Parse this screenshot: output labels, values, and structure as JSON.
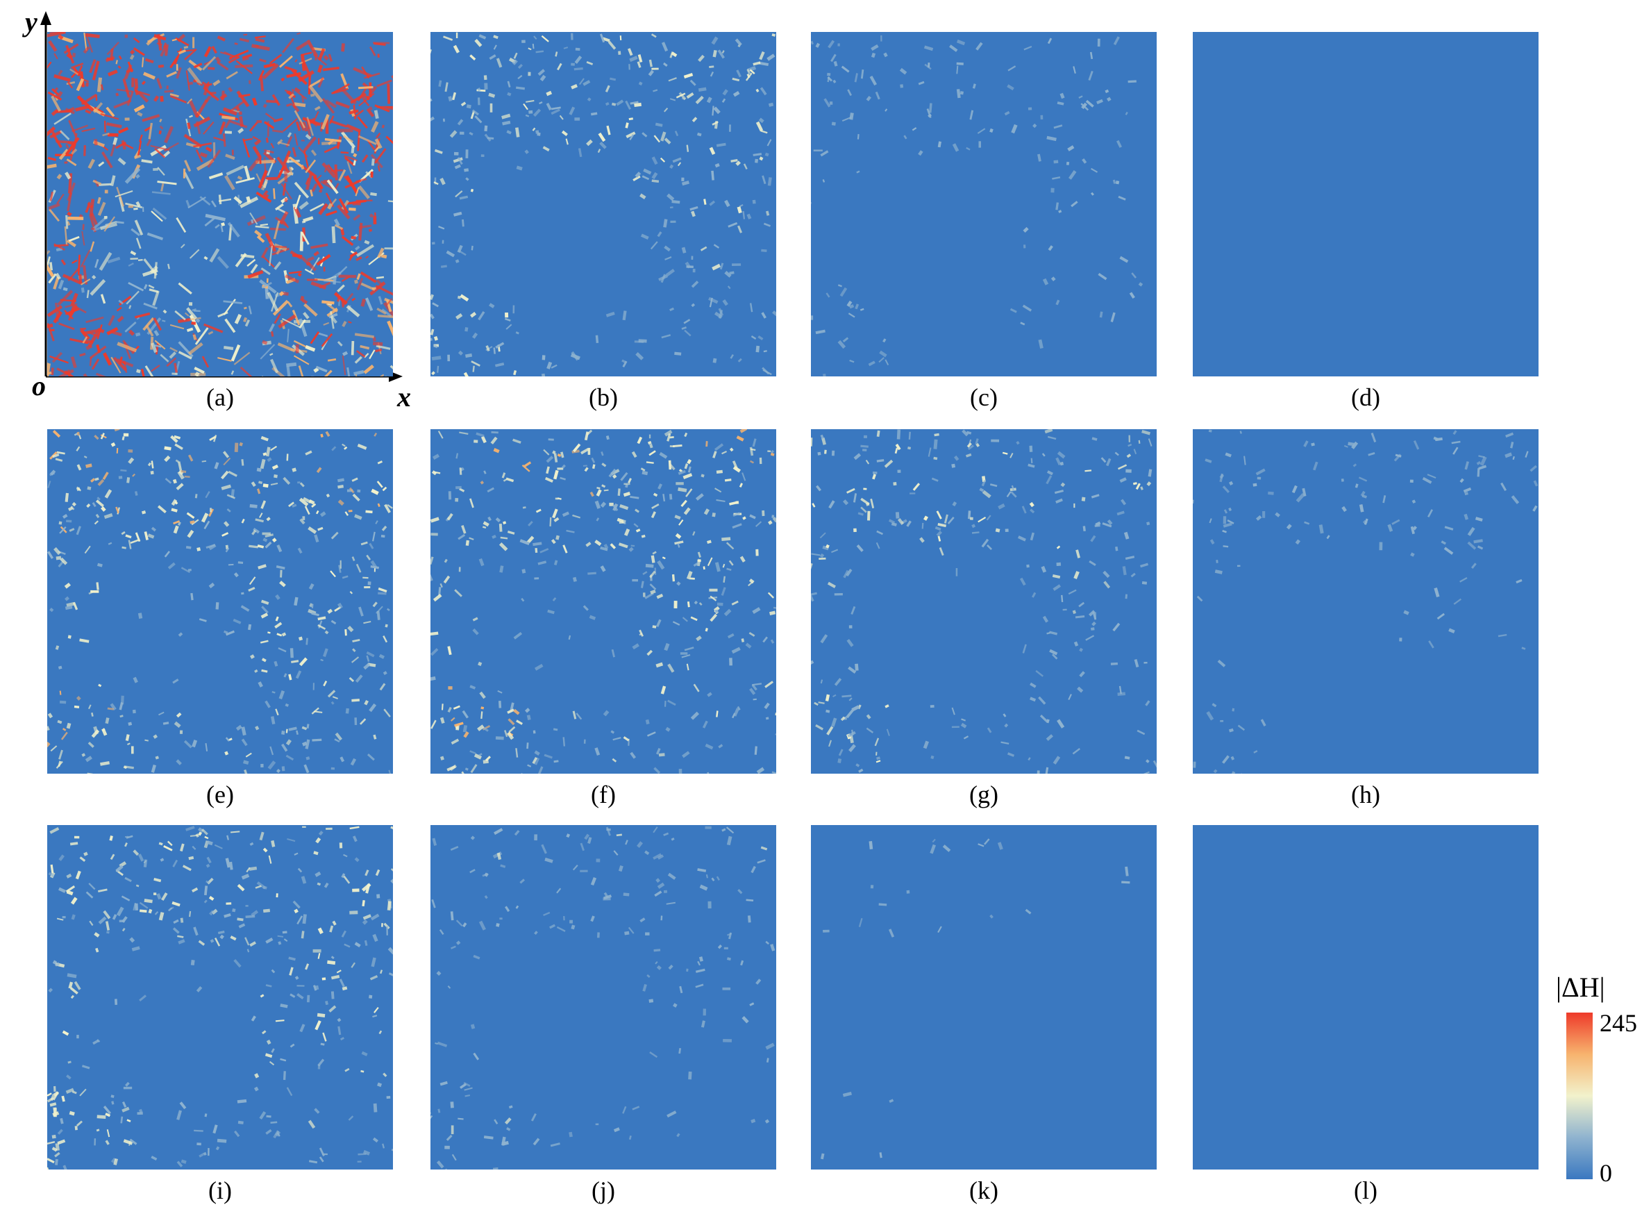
{
  "axes": {
    "x_label": "x",
    "y_label": "y",
    "origin_label": "o"
  },
  "panels": [
    {
      "label": "(a)",
      "severity": 1.0
    },
    {
      "label": "(b)",
      "severity": 0.32
    },
    {
      "label": "(c)",
      "severity": 0.2
    },
    {
      "label": "(d)",
      "severity": 0.12
    },
    {
      "label": "(e)",
      "severity": 0.42
    },
    {
      "label": "(f)",
      "severity": 0.4
    },
    {
      "label": "(g)",
      "severity": 0.28
    },
    {
      "label": "(h)",
      "severity": 0.2
    },
    {
      "label": "(i)",
      "severity": 0.34
    },
    {
      "label": "(j)",
      "severity": 0.22
    },
    {
      "label": "(k)",
      "severity": 0.14
    },
    {
      "label": "(l)",
      "severity": 0.12
    }
  ],
  "colorbar": {
    "title": "|ΔH|",
    "max_label": "245",
    "min_label": "0",
    "colors": [
      "#3a78c0",
      "#8fb3cf",
      "#f2f2cc",
      "#f7b36e",
      "#ee3a2a"
    ]
  }
}
